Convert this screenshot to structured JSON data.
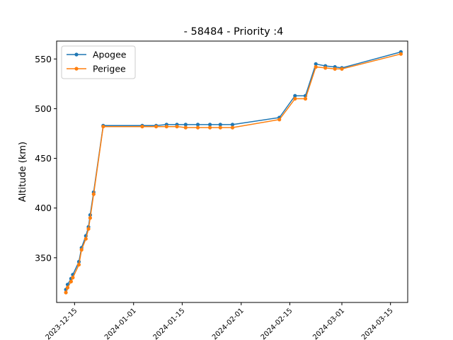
{
  "chart_data": {
    "type": "line",
    "title": "- 58484 - Priority :4",
    "xlabel": "",
    "ylabel": "Altitude (km)",
    "x_type": "date",
    "xlim": [
      "2023-12-09T20:00",
      "2024-03-19T23:00"
    ],
    "ylim": [
      305,
      568
    ],
    "x_ticks": [
      "2023-12-15",
      "2024-01-01",
      "2024-01-15",
      "2024-02-01",
      "2024-02-15",
      "2024-03-01",
      "2024-03-15"
    ],
    "y_ticks": [
      350,
      400,
      450,
      500,
      550
    ],
    "legend_position": "top-left",
    "grid": false,
    "x": [
      "2023-12-12T12:00",
      "2023-12-13T00:00",
      "2023-12-14T00:00",
      "2023-12-14T12:00",
      "2023-12-16T06:00",
      "2023-12-17T00:00",
      "2023-12-18T06:00",
      "2023-12-19T00:00",
      "2023-12-19T12:00",
      "2023-12-20T12:00",
      "2023-12-23T06:00",
      "2024-01-03T12:00",
      "2024-01-07T12:00",
      "2024-01-10T12:00",
      "2024-01-13T12:00",
      "2024-01-16T00:00",
      "2024-01-19T12:00",
      "2024-01-23T00:00",
      "2024-01-26T00:00",
      "2024-01-29T12:00",
      "2024-02-12T00:00",
      "2024-02-16T12:00",
      "2024-02-19T12:00",
      "2024-02-22T12:00",
      "2024-02-25T06:00",
      "2024-02-28T00:00",
      "2024-03-01T00:00",
      "2024-03-18T00:00"
    ],
    "series": [
      {
        "name": "Apogee",
        "color": "#1f77b4",
        "values": [
          318,
          323,
          329,
          333,
          346,
          360,
          372,
          381,
          393,
          416,
          483,
          483,
          483,
          484,
          484,
          484,
          484,
          484,
          484,
          484,
          491,
          513,
          513,
          545,
          543,
          542,
          541,
          557
        ]
      },
      {
        "name": "Perigee",
        "color": "#ff7f0e",
        "values": [
          315,
          320,
          326,
          330,
          343,
          358,
          369,
          379,
          390,
          414,
          482,
          482,
          482,
          482,
          482,
          481,
          481,
          481,
          481,
          481,
          489,
          510,
          510,
          542,
          541,
          540,
          540,
          555
        ]
      }
    ]
  }
}
